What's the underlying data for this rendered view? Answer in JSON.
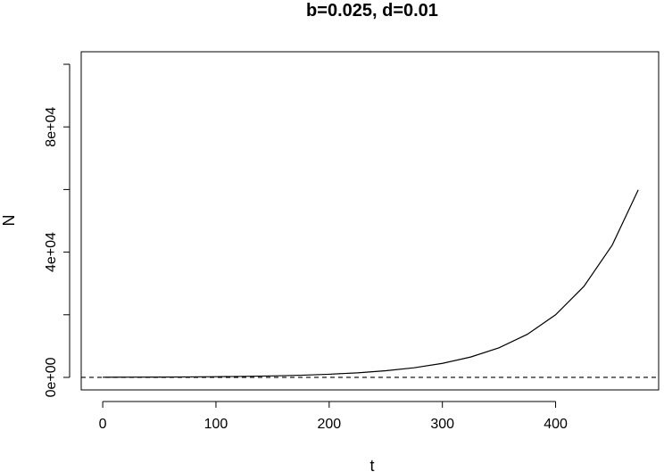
{
  "chart_data": {
    "type": "line",
    "title": "b=0.025, d=0.01",
    "xlabel": "t",
    "ylabel": "N",
    "xlim": [
      -19,
      491
    ],
    "ylim": [
      -4000,
      104000
    ],
    "x_ticks": [
      0,
      100,
      200,
      300,
      400
    ],
    "x_tick_labels": [
      "0",
      "100",
      "200",
      "300",
      "400"
    ],
    "y_ticks": [
      0,
      20000,
      40000,
      60000,
      80000,
      100000
    ],
    "y_tick_labels": [
      "0e+00",
      "",
      "4e+04",
      "",
      "8e+04",
      ""
    ],
    "grid": false,
    "series": [
      {
        "style": "solid",
        "x": [
          0,
          25,
          50,
          75,
          100,
          125,
          150,
          175,
          200,
          225,
          250,
          275,
          300,
          325,
          350,
          375,
          400,
          425,
          450,
          473
        ],
        "y": [
          50,
          73,
          106,
          154,
          224,
          326,
          474,
          689,
          1002,
          1456,
          2117,
          3078,
          4475,
          6506,
          9459,
          13752,
          19993,
          29067,
          42258,
          59900
        ]
      },
      {
        "style": "dashed",
        "x": [
          -19,
          491
        ],
        "y": [
          0,
          0
        ]
      }
    ]
  }
}
